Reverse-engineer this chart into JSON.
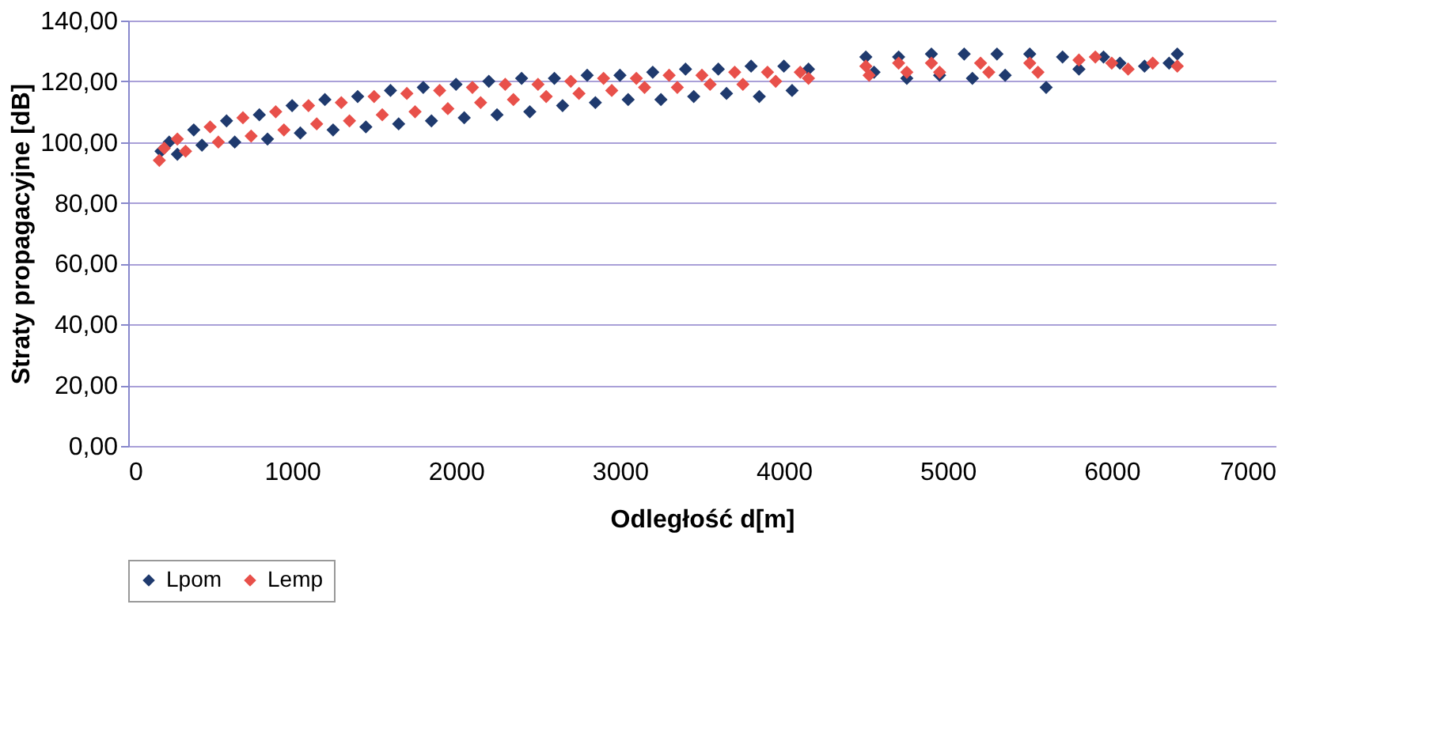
{
  "chart_data": {
    "type": "scatter",
    "xlabel": "Odległość d[m]",
    "ylabel": "Straty propagacyjne [dB]",
    "xlim": [
      0,
      7000
    ],
    "xticks": [
      0,
      1000,
      2000,
      3000,
      4000,
      5000,
      6000,
      7000
    ],
    "ylim": [
      0,
      140
    ],
    "yticks": [
      {
        "value": 0,
        "label": "0,00"
      },
      {
        "value": 20,
        "label": "20,00"
      },
      {
        "value": 40,
        "label": "40,00"
      },
      {
        "value": 60,
        "label": "60,00"
      },
      {
        "value": 80,
        "label": "80,00"
      },
      {
        "value": 100,
        "label": "100,00"
      },
      {
        "value": 120,
        "label": "120,00"
      },
      {
        "value": 140,
        "label": "140,00"
      }
    ],
    "grid": "y",
    "legend": "bottom",
    "marker": "diamond",
    "series": [
      {
        "name": "Lpom",
        "color": "#1f3a6e",
        "x": [
          200,
          250,
          300,
          400,
          450,
          600,
          650,
          800,
          850,
          1000,
          1050,
          1200,
          1250,
          1400,
          1450,
          1600,
          1650,
          1800,
          1850,
          2000,
          2050,
          2200,
          2250,
          2400,
          2450,
          2600,
          2650,
          2800,
          2850,
          3000,
          3050,
          3200,
          3250,
          3400,
          3450,
          3600,
          3650,
          3800,
          3850,
          4000,
          4050,
          4150,
          4500,
          4550,
          4700,
          4750,
          4900,
          4950,
          5100,
          5150,
          5300,
          5350,
          5500,
          5600,
          5700,
          5800,
          5950,
          6050,
          6200,
          6350,
          6400
        ],
        "values": [
          97,
          100,
          96,
          104,
          99,
          107,
          100,
          109,
          101,
          112,
          103,
          114,
          104,
          115,
          105,
          117,
          106,
          118,
          107,
          119,
          108,
          120,
          109,
          121,
          110,
          121,
          112,
          122,
          113,
          122,
          114,
          123,
          114,
          124,
          115,
          124,
          116,
          125,
          115,
          125,
          117,
          124,
          128,
          123,
          128,
          121,
          129,
          122,
          129,
          121,
          129,
          122,
          129,
          118,
          128,
          124,
          128,
          126,
          125,
          126,
          129
        ]
      },
      {
        "name": "Lemp",
        "color": "#e8504a",
        "x": [
          190,
          220,
          300,
          350,
          500,
          550,
          700,
          750,
          900,
          950,
          1100,
          1150,
          1300,
          1350,
          1500,
          1550,
          1700,
          1750,
          1900,
          1950,
          2100,
          2150,
          2300,
          2350,
          2500,
          2550,
          2700,
          2750,
          2900,
          2950,
          3100,
          3150,
          3300,
          3350,
          3500,
          3550,
          3700,
          3750,
          3900,
          3950,
          4100,
          4150,
          4500,
          4520,
          4700,
          4750,
          4900,
          4950,
          5200,
          5250,
          5500,
          5550,
          5800,
          5900,
          6000,
          6100,
          6250,
          6400
        ],
        "values": [
          94,
          98,
          101,
          97,
          105,
          100,
          108,
          102,
          110,
          104,
          112,
          106,
          113,
          107,
          115,
          109,
          116,
          110,
          117,
          111,
          118,
          113,
          119,
          114,
          119,
          115,
          120,
          116,
          121,
          117,
          121,
          118,
          122,
          118,
          122,
          119,
          123,
          119,
          123,
          120,
          123,
          121,
          125,
          122,
          126,
          123,
          126,
          123,
          126,
          123,
          126,
          123,
          127,
          128,
          126,
          124,
          126,
          125
        ]
      }
    ]
  }
}
